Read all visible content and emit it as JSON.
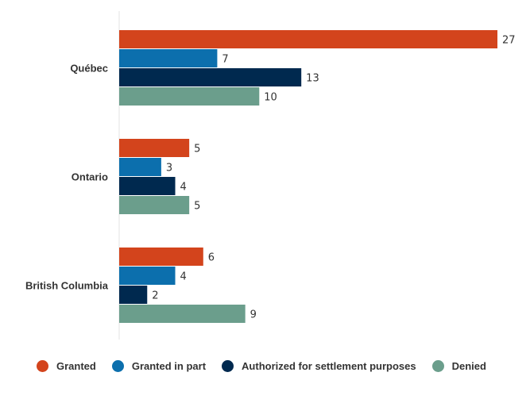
{
  "chart_data": {
    "type": "bar",
    "orientation": "horizontal",
    "categories": [
      "Québec",
      "Ontario",
      "British Columbia"
    ],
    "series": [
      {
        "name": "Granted",
        "color": "#d3441c",
        "values": [
          27,
          5,
          6
        ]
      },
      {
        "name": "Granted in part",
        "color": "#0c6fad",
        "values": [
          7,
          3,
          4
        ]
      },
      {
        "name": "Authorized for settlement purposes",
        "color": "#00294f",
        "values": [
          13,
          4,
          2
        ]
      },
      {
        "name": "Denied",
        "color": "#6b9e8c",
        "values": [
          10,
          5,
          9
        ]
      }
    ],
    "xlim": [
      0,
      27
    ],
    "grid": false,
    "legend_position": "bottom",
    "title": "",
    "xlabel": "",
    "ylabel": ""
  }
}
